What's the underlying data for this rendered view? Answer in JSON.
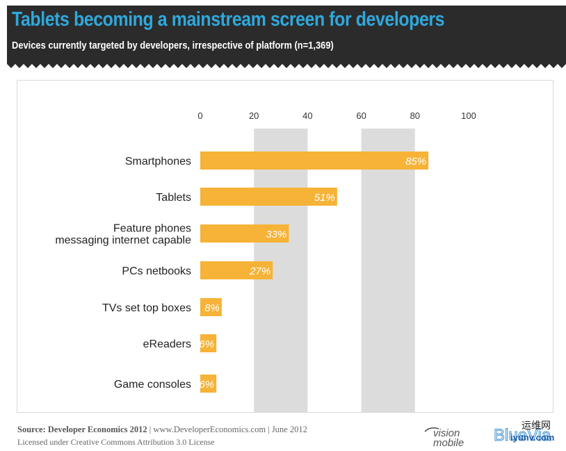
{
  "header": {
    "title": "Tablets becoming a mainstream screen for developers",
    "subtitle": "Devices currently targeted by developers, irrespective of platform (n=1,369)"
  },
  "chart_data": {
    "type": "bar",
    "orientation": "horizontal",
    "title": "Tablets becoming a mainstream screen for developers",
    "subtitle": "Devices currently targeted by developers, irrespective of platform (n=1,369)",
    "categories": [
      [
        "Smartphones"
      ],
      [
        "Tablets"
      ],
      [
        "Feature phones",
        "messaging internet capable"
      ],
      [
        "PCs netbooks"
      ],
      [
        "TVs set top boxes"
      ],
      [
        "eReaders"
      ],
      [
        "Game consoles"
      ]
    ],
    "values": [
      85,
      51,
      33,
      27,
      8,
      6,
      6
    ],
    "value_labels": [
      "85%",
      "51%",
      "33%",
      "27%",
      "8%",
      "6%",
      "6%"
    ],
    "xlim": [
      0,
      100
    ],
    "xticks": [
      0,
      20,
      40,
      60,
      80,
      100
    ],
    "xtick_labels": [
      "0",
      "20",
      "40",
      "60",
      "80",
      "100"
    ],
    "bar_color": "#f6b337",
    "band_color": "#dcdcdc",
    "label_color": "#ffffff"
  },
  "footer": {
    "source_label": "Source: Developer Economics 2012",
    "source_rest": " | www.DeveloperEconomics.com | June 2012",
    "license": "Licensed under Creative Commons Attribution 3.0 License"
  },
  "logos": {
    "vision_top": "vision",
    "vision_bottom": "mobile",
    "blue_via": "BlueVia",
    "watermark_cn": "运维网",
    "watermark_url": "iyunv.com"
  }
}
